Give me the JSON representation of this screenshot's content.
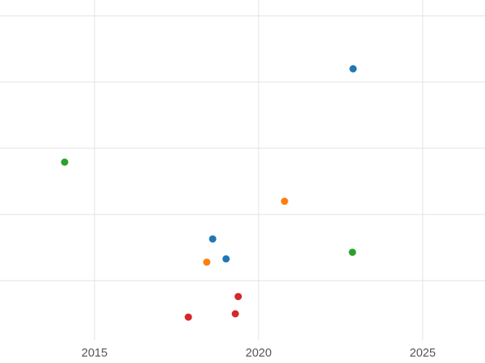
{
  "chart_data": {
    "type": "scatter",
    "title": "",
    "xlabel": "",
    "ylabel": "",
    "grid": true,
    "legend": false,
    "background_color": "#ffffff",
    "gridline_color": "#e3e3e3",
    "tick_label_color": "#545454",
    "xlim": [
      2012.12,
      2026.9
    ],
    "ylim": [
      0,
      5.24
    ],
    "x_ticks": [
      2015,
      2020,
      2025
    ],
    "x_tick_labels": [
      "2015",
      "2020",
      "2025"
    ],
    "y_gridline_values": [
      1,
      2,
      3,
      4,
      5
    ],
    "point_radius": 4.5,
    "series": [
      {
        "name": "blue",
        "color": "#1f77b4",
        "points": [
          {
            "x": 2022.88,
            "y": 4.2
          },
          {
            "x": 2018.6,
            "y": 1.63
          },
          {
            "x": 2019.01,
            "y": 1.33
          }
        ]
      },
      {
        "name": "orange",
        "color": "#ff7f0e",
        "points": [
          {
            "x": 2020.79,
            "y": 2.2
          },
          {
            "x": 2018.42,
            "y": 1.28
          }
        ]
      },
      {
        "name": "green",
        "color": "#2ca02c",
        "points": [
          {
            "x": 2014.09,
            "y": 2.79
          },
          {
            "x": 2022.86,
            "y": 1.43
          }
        ]
      },
      {
        "name": "red",
        "color": "#d62728",
        "points": [
          {
            "x": 2019.38,
            "y": 0.76
          },
          {
            "x": 2019.29,
            "y": 0.5
          },
          {
            "x": 2017.86,
            "y": 0.45
          }
        ]
      }
    ]
  }
}
